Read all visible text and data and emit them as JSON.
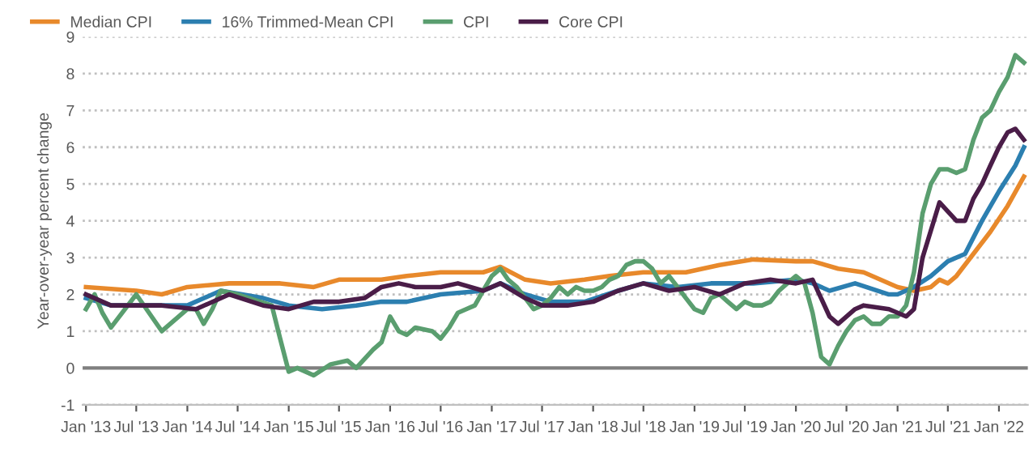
{
  "chart_data": {
    "type": "line",
    "ylabel": "Year-over-year percent change",
    "ylim": [
      -1,
      9
    ],
    "yticks": [
      -1,
      0,
      1,
      2,
      3,
      4,
      5,
      6,
      7,
      8,
      9
    ],
    "xlim": [
      "2012-12-20",
      "2022-04-15"
    ],
    "xticks": [
      {
        "value": "2013-01",
        "label": "Jan '13"
      },
      {
        "value": "2013-07",
        "label": "Jul '13"
      },
      {
        "value": "2014-01",
        "label": "Jan '14"
      },
      {
        "value": "2014-07",
        "label": "Jul '14"
      },
      {
        "value": "2015-01",
        "label": "Jan '15"
      },
      {
        "value": "2015-07",
        "label": "Jul '15"
      },
      {
        "value": "2016-01",
        "label": "Jan '16"
      },
      {
        "value": "2016-07",
        "label": "Jul '16"
      },
      {
        "value": "2017-01",
        "label": "Jan '17"
      },
      {
        "value": "2017-07",
        "label": "Jul '17"
      },
      {
        "value": "2018-01",
        "label": "Jan '18"
      },
      {
        "value": "2018-07",
        "label": "Jul '18"
      },
      {
        "value": "2019-01",
        "label": "Jan '19"
      },
      {
        "value": "2019-07",
        "label": "Jul '19"
      },
      {
        "value": "2020-01",
        "label": "Jan '20"
      },
      {
        "value": "2020-07",
        "label": "Jul '20"
      },
      {
        "value": "2021-01",
        "label": "Jan '21"
      },
      {
        "value": "2021-07",
        "label": "Jul '21"
      },
      {
        "value": "2022-01",
        "label": "Jan '22"
      }
    ],
    "grid": "y",
    "legend": "top left",
    "marker": "none",
    "line_style": "solid",
    "ref_lines": [
      {
        "axis": "y",
        "value": 0,
        "color": "#7f7f7f"
      }
    ],
    "series": [
      {
        "name": "Median CPI",
        "color": "#e8892b",
        "x": [
          "2013-01",
          "2013-07",
          "2013-10",
          "2014-01",
          "2014-06",
          "2014-12",
          "2015-04",
          "2015-07",
          "2015-12",
          "2016-03",
          "2016-07",
          "2016-12",
          "2017-02",
          "2017-05",
          "2017-08",
          "2017-12",
          "2018-03",
          "2018-07",
          "2018-12",
          "2019-04",
          "2019-08",
          "2020-01",
          "2020-03",
          "2020-06",
          "2020-09",
          "2021-01",
          "2021-03",
          "2021-05",
          "2021-06",
          "2021-07",
          "2021-08",
          "2021-10",
          "2021-12",
          "2022-02",
          "2022-04"
        ],
        "values": [
          2.2,
          2.1,
          2.0,
          2.2,
          2.3,
          2.3,
          2.2,
          2.4,
          2.4,
          2.5,
          2.6,
          2.6,
          2.75,
          2.4,
          2.3,
          2.4,
          2.5,
          2.6,
          2.6,
          2.8,
          2.95,
          2.9,
          2.9,
          2.7,
          2.6,
          2.2,
          2.1,
          2.2,
          2.4,
          2.3,
          2.5,
          3.1,
          3.7,
          4.4,
          5.2
        ]
      },
      {
        "name": "16% Trimmed-Mean CPI",
        "color": "#2c7fb0",
        "x": [
          "2013-01",
          "2013-04",
          "2013-10",
          "2014-01",
          "2014-05",
          "2014-10",
          "2015-01",
          "2015-05",
          "2015-09",
          "2015-12",
          "2016-03",
          "2016-07",
          "2016-12",
          "2017-02",
          "2017-05",
          "2017-08",
          "2017-12",
          "2018-04",
          "2018-07",
          "2018-11",
          "2019-03",
          "2019-08",
          "2020-01",
          "2020-03",
          "2020-05",
          "2020-08",
          "2020-12",
          "2021-01",
          "2021-03",
          "2021-05",
          "2021-07",
          "2021-09",
          "2021-11",
          "2022-01",
          "2022-03",
          "2022-04"
        ],
        "values": [
          1.9,
          1.7,
          1.7,
          1.7,
          2.1,
          1.9,
          1.7,
          1.6,
          1.7,
          1.8,
          1.8,
          2.0,
          2.1,
          2.3,
          2.0,
          1.8,
          1.8,
          2.1,
          2.3,
          2.2,
          2.3,
          2.3,
          2.4,
          2.3,
          2.1,
          2.3,
          2.0,
          2.0,
          2.2,
          2.5,
          2.9,
          3.1,
          4.0,
          4.8,
          5.5,
          6.0
        ]
      },
      {
        "name": "CPI",
        "color": "#5a9e6f",
        "x": [
          "2013-01",
          "2013-02",
          "2013-03",
          "2013-04",
          "2013-07",
          "2013-10",
          "2014-01",
          "2014-02",
          "2014-03",
          "2014-04",
          "2014-05",
          "2014-07",
          "2014-11",
          "2014-12",
          "2015-01",
          "2015-02",
          "2015-04",
          "2015-06",
          "2015-08",
          "2015-09",
          "2015-11",
          "2015-12",
          "2016-01",
          "2016-02",
          "2016-03",
          "2016-04",
          "2016-06",
          "2016-07",
          "2016-08",
          "2016-09",
          "2016-10",
          "2016-11",
          "2016-12",
          "2017-01",
          "2017-02",
          "2017-03",
          "2017-04",
          "2017-06",
          "2017-07",
          "2017-08",
          "2017-09",
          "2017-10",
          "2017-11",
          "2017-12",
          "2018-01",
          "2018-02",
          "2018-03",
          "2018-04",
          "2018-05",
          "2018-06",
          "2018-07",
          "2018-08",
          "2018-09",
          "2018-10",
          "2018-11",
          "2018-12",
          "2019-01",
          "2019-02",
          "2019-03",
          "2019-04",
          "2019-05",
          "2019-06",
          "2019-07",
          "2019-08",
          "2019-09",
          "2019-10",
          "2019-11",
          "2019-12",
          "2020-01",
          "2020-02",
          "2020-03",
          "2020-04",
          "2020-05",
          "2020-06",
          "2020-07",
          "2020-08",
          "2020-09",
          "2020-10",
          "2020-11",
          "2020-12",
          "2021-01",
          "2021-02",
          "2021-03",
          "2021-04",
          "2021-05",
          "2021-06",
          "2021-07",
          "2021-08",
          "2021-09",
          "2021-10",
          "2021-11",
          "2021-12",
          "2022-01",
          "2022-02",
          "2022-03",
          "2022-04"
        ],
        "values": [
          1.6,
          2.0,
          1.5,
          1.1,
          2.0,
          1.0,
          1.6,
          1.6,
          1.2,
          1.6,
          2.1,
          2.0,
          1.7,
          0.8,
          -0.1,
          0.0,
          -0.2,
          0.1,
          0.2,
          0.0,
          0.5,
          0.7,
          1.4,
          1.0,
          0.9,
          1.1,
          1.0,
          0.8,
          1.1,
          1.5,
          1.6,
          1.7,
          2.1,
          2.5,
          2.7,
          2.4,
          2.2,
          1.6,
          1.7,
          1.9,
          2.2,
          2.0,
          2.2,
          2.1,
          2.1,
          2.2,
          2.4,
          2.5,
          2.8,
          2.9,
          2.9,
          2.7,
          2.3,
          2.5,
          2.2,
          1.9,
          1.6,
          1.5,
          1.9,
          2.0,
          1.8,
          1.6,
          1.8,
          1.7,
          1.7,
          1.8,
          2.1,
          2.3,
          2.5,
          2.3,
          1.5,
          0.3,
          0.1,
          0.6,
          1.0,
          1.3,
          1.4,
          1.2,
          1.2,
          1.4,
          1.4,
          1.7,
          2.6,
          4.2,
          5.0,
          5.4,
          5.4,
          5.3,
          5.4,
          6.2,
          6.8,
          7.0,
          7.5,
          7.9,
          8.5,
          8.3
        ]
      },
      {
        "name": "Core CPI",
        "color": "#4a1d48",
        "x": [
          "2013-01",
          "2013-04",
          "2013-07",
          "2013-10",
          "2014-02",
          "2014-06",
          "2014-10",
          "2015-01",
          "2015-04",
          "2015-07",
          "2015-10",
          "2015-12",
          "2016-02",
          "2016-04",
          "2016-07",
          "2016-09",
          "2016-12",
          "2017-02",
          "2017-05",
          "2017-07",
          "2017-10",
          "2018-01",
          "2018-04",
          "2018-07",
          "2018-10",
          "2019-01",
          "2019-04",
          "2019-07",
          "2019-10",
          "2020-01",
          "2020-03",
          "2020-05",
          "2020-06",
          "2020-08",
          "2020-09",
          "2020-12",
          "2021-02",
          "2021-03",
          "2021-04",
          "2021-06",
          "2021-08",
          "2021-09",
          "2021-10",
          "2021-11",
          "2021-12",
          "2022-01",
          "2022-02",
          "2022-03",
          "2022-04"
        ],
        "values": [
          2.0,
          1.7,
          1.7,
          1.7,
          1.6,
          2.0,
          1.7,
          1.6,
          1.8,
          1.8,
          1.9,
          2.2,
          2.3,
          2.2,
          2.2,
          2.3,
          2.1,
          2.3,
          1.9,
          1.7,
          1.7,
          1.8,
          2.1,
          2.3,
          2.1,
          2.2,
          2.0,
          2.3,
          2.4,
          2.3,
          2.4,
          1.4,
          1.2,
          1.6,
          1.7,
          1.6,
          1.4,
          1.6,
          3.0,
          4.5,
          4.0,
          4.0,
          4.6,
          5.0,
          5.5,
          6.0,
          6.4,
          6.5,
          6.2
        ]
      }
    ]
  }
}
